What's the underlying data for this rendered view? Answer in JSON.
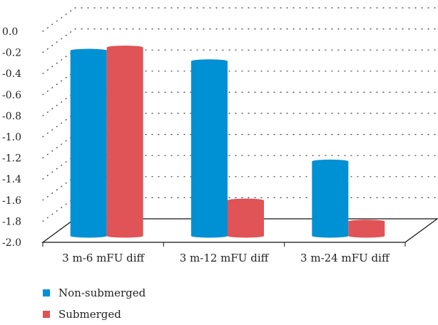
{
  "chart_data": {
    "type": "bar",
    "style": "3d-cylinder",
    "categories": [
      "3 m-6 mFU diff",
      "3 m-12 mFU diff",
      "3 m-24 mFU diff"
    ],
    "series": [
      {
        "name": "Non-submerged",
        "color": "#0090d4",
        "values": [
          -0.25,
          -0.35,
          -1.3
        ]
      },
      {
        "name": "Submerged",
        "color": "#e05356",
        "values": [
          -0.22,
          -1.67,
          -1.87
        ]
      }
    ],
    "yticks": [
      "0.0",
      "-0.2",
      "-0.4",
      "-0.6",
      "-0.8",
      "-1.0",
      "-1.2",
      "-1.4",
      "-1.6",
      "-1.8",
      "-2.0"
    ],
    "ylim": [
      -2.0,
      0.0
    ],
    "grid": "dotted",
    "legend_position": "bottom-left"
  },
  "legend": {
    "items": [
      {
        "label": "Non-submerged",
        "color": "#0090d4"
      },
      {
        "label": "Submerged",
        "color": "#e05356"
      }
    ]
  }
}
